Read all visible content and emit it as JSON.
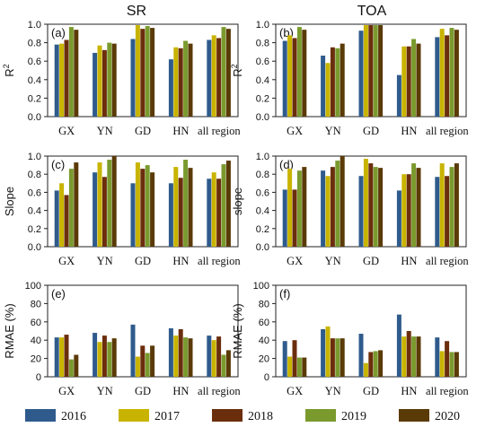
{
  "column_titles": [
    "SR",
    "TOA"
  ],
  "legend": [
    {
      "label": "2016",
      "color": "#2f5b8c"
    },
    {
      "label": "2017",
      "color": "#c8b400"
    },
    {
      "label": "2018",
      "color": "#6b2e0c"
    },
    {
      "label": "2019",
      "color": "#7a9a2e"
    },
    {
      "label": "2020",
      "color": "#5a3a06"
    }
  ],
  "chart_data": [
    {
      "type": "bar",
      "panel": "(a)",
      "column": "SR",
      "ylabel": "R2",
      "ylabel_main": "R",
      "ylabel_sup": "2",
      "ylim": [
        0,
        1.0
      ],
      "yticks": [
        "0.0",
        "0.2",
        "0.4",
        "0.6",
        "0.8",
        "1.0"
      ],
      "categories": [
        "GX",
        "YN",
        "GD",
        "HN",
        "all region"
      ],
      "series": [
        {
          "name": "2016",
          "values": [
            0.78,
            0.69,
            0.84,
            0.62,
            0.83
          ]
        },
        {
          "name": "2017",
          "values": [
            0.79,
            0.77,
            0.99,
            0.75,
            0.88
          ]
        },
        {
          "name": "2018",
          "values": [
            0.83,
            0.72,
            0.95,
            0.74,
            0.85
          ]
        },
        {
          "name": "2019",
          "values": [
            0.97,
            0.8,
            0.98,
            0.82,
            0.97
          ]
        },
        {
          "name": "2020",
          "values": [
            0.94,
            0.79,
            0.96,
            0.79,
            0.95
          ]
        }
      ]
    },
    {
      "type": "bar",
      "panel": "(b)",
      "column": "TOA",
      "ylabel": "R2",
      "ylabel_main": "R",
      "ylabel_sup": "2",
      "ylim": [
        0,
        1.0
      ],
      "yticks": [
        "0.0",
        "0.2",
        "0.4",
        "0.6",
        "0.8",
        "1.0"
      ],
      "categories": [
        "GX",
        "YN",
        "GD",
        "HN",
        "all region"
      ],
      "series": [
        {
          "name": "2016",
          "values": [
            0.82,
            0.66,
            0.93,
            0.45,
            0.86
          ]
        },
        {
          "name": "2017",
          "values": [
            0.88,
            0.58,
            0.99,
            0.76,
            0.95
          ]
        },
        {
          "name": "2018",
          "values": [
            0.85,
            0.75,
            0.99,
            0.76,
            0.88
          ]
        },
        {
          "name": "2019",
          "values": [
            0.97,
            0.74,
            0.99,
            0.84,
            0.96
          ]
        },
        {
          "name": "2020",
          "values": [
            0.94,
            0.79,
            0.99,
            0.79,
            0.94
          ]
        }
      ]
    },
    {
      "type": "bar",
      "panel": "(c)",
      "column": "SR",
      "ylabel": "Slope",
      "ylim": [
        0,
        1.0
      ],
      "yticks": [
        "0.0",
        "0.2",
        "0.4",
        "0.6",
        "0.8",
        "1.0"
      ],
      "categories": [
        "GX",
        "YN",
        "GD",
        "HN",
        "all region"
      ],
      "series": [
        {
          "name": "2016",
          "values": [
            0.62,
            0.82,
            0.7,
            0.7,
            0.75
          ]
        },
        {
          "name": "2017",
          "values": [
            0.7,
            0.93,
            0.93,
            0.88,
            0.82
          ]
        },
        {
          "name": "2018",
          "values": [
            0.57,
            0.77,
            0.86,
            0.76,
            0.75
          ]
        },
        {
          "name": "2019",
          "values": [
            0.86,
            0.96,
            0.9,
            0.96,
            0.91
          ]
        },
        {
          "name": "2020",
          "values": [
            0.93,
            1.0,
            0.82,
            0.87,
            0.95
          ]
        }
      ]
    },
    {
      "type": "bar",
      "panel": "(d)",
      "column": "TOA",
      "ylabel": "slope",
      "ylim": [
        0,
        1.0
      ],
      "yticks": [
        "0.0",
        "0.2",
        "0.4",
        "0.6",
        "0.8",
        "1.0"
      ],
      "categories": [
        "GX",
        "YN",
        "GD",
        "HN",
        "all region"
      ],
      "series": [
        {
          "name": "2016",
          "values": [
            0.63,
            0.84,
            0.78,
            0.62,
            0.77
          ]
        },
        {
          "name": "2017",
          "values": [
            0.86,
            0.78,
            0.97,
            0.8,
            0.92
          ]
        },
        {
          "name": "2018",
          "values": [
            0.63,
            0.88,
            0.92,
            0.8,
            0.78
          ]
        },
        {
          "name": "2019",
          "values": [
            0.84,
            0.95,
            0.88,
            0.92,
            0.88
          ]
        },
        {
          "name": "2020",
          "values": [
            0.88,
            1.0,
            0.87,
            0.87,
            0.92
          ]
        }
      ]
    },
    {
      "type": "bar",
      "panel": "(e)",
      "column": "SR",
      "ylabel": "RMAE (%)",
      "ylim": [
        0,
        100
      ],
      "yticks": [
        "0",
        "20",
        "40",
        "60",
        "80",
        "100"
      ],
      "categories": [
        "GX",
        "YN",
        "GD",
        "HN",
        "all region"
      ],
      "series": [
        {
          "name": "2016",
          "values": [
            43,
            48,
            57,
            53,
            45
          ]
        },
        {
          "name": "2017",
          "values": [
            43,
            38,
            22,
            45,
            40
          ]
        },
        {
          "name": "2018",
          "values": [
            46,
            45,
            34,
            52,
            44
          ]
        },
        {
          "name": "2019",
          "values": [
            19,
            38,
            26,
            43,
            24
          ]
        },
        {
          "name": "2020",
          "values": [
            24,
            42,
            34,
            42,
            29
          ]
        }
      ]
    },
    {
      "type": "bar",
      "panel": "(f)",
      "column": "TOA",
      "ylabel": "RMAE (%)",
      "ylim": [
        0,
        100
      ],
      "yticks": [
        "0",
        "20",
        "40",
        "60",
        "80",
        "100"
      ],
      "categories": [
        "GX",
        "YN",
        "GD",
        "HN",
        "all region"
      ],
      "series": [
        {
          "name": "2016",
          "values": [
            39,
            52,
            47,
            68,
            43
          ]
        },
        {
          "name": "2017",
          "values": [
            22,
            55,
            15,
            44,
            28
          ]
        },
        {
          "name": "2018",
          "values": [
            40,
            42,
            27,
            50,
            39
          ]
        },
        {
          "name": "2019",
          "values": [
            21,
            42,
            28,
            44,
            27
          ]
        },
        {
          "name": "2020",
          "values": [
            21,
            42,
            29,
            44,
            27
          ]
        }
      ]
    }
  ]
}
